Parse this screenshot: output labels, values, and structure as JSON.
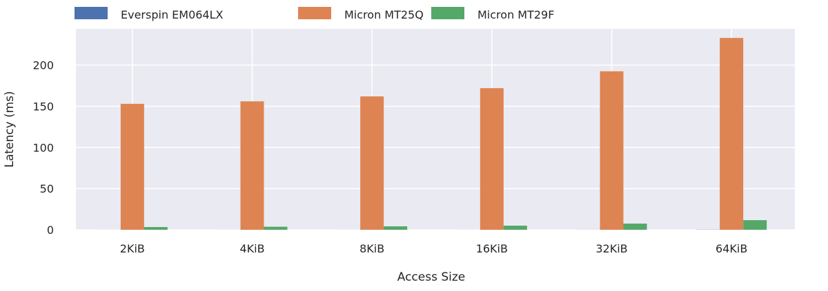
{
  "chart_data": {
    "type": "bar",
    "title": "",
    "xlabel": "Access Size",
    "ylabel": "Latency (ms)",
    "categories": [
      "2KiB",
      "4KiB",
      "8KiB",
      "16KiB",
      "32KiB",
      "64KiB"
    ],
    "ylim": [
      0,
      244
    ],
    "yticks": [
      0,
      50,
      100,
      150,
      200
    ],
    "grid": true,
    "legend_position": "top",
    "series": [
      {
        "name": "Everspin EM064LX",
        "color": "#4c72b0",
        "values": [
          0.05,
          0.05,
          0.05,
          0.05,
          0.1,
          0.2
        ]
      },
      {
        "name": "Micron MT25Q",
        "color": "#dd8452",
        "values": [
          153,
          156,
          162,
          172,
          192.5,
          233
        ]
      },
      {
        "name": "Micron MT29F",
        "color": "#55a868",
        "values": [
          3.3,
          3.7,
          4.2,
          5,
          7.5,
          11.7
        ]
      }
    ]
  }
}
